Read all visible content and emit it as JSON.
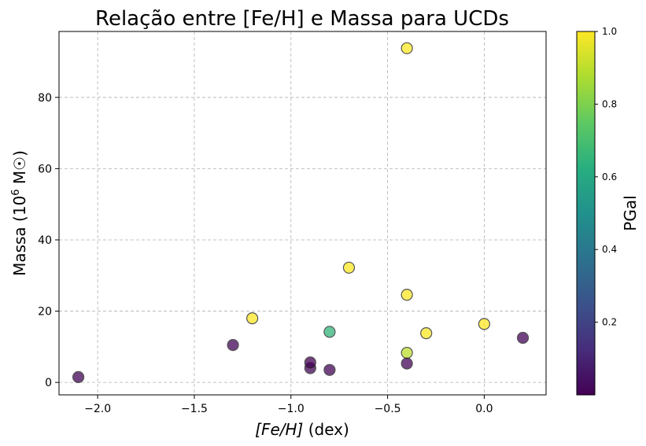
{
  "chart_data": {
    "type": "scatter",
    "title": "Relação entre [Fe/H] e Massa para UCDs",
    "xlabel_main": "[Fe/H]",
    "xlabel_suffix": " (dex)",
    "ylabel_main": "Massa (10",
    "ylabel_sup": "6",
    "ylabel_suffix": " M☉)",
    "xlim": [
      -2.2,
      0.32
    ],
    "ylim": [
      -3.5,
      98.5
    ],
    "xticks": [
      -2.0,
      -1.5,
      -1.0,
      -0.5,
      0.0
    ],
    "xtick_labels": [
      "−2.0",
      "−1.5",
      "−1.0",
      "−0.5",
      "0.0"
    ],
    "yticks": [
      0,
      20,
      40,
      60,
      80
    ],
    "ytick_labels": [
      "0",
      "20",
      "40",
      "60",
      "80"
    ],
    "grid": true,
    "colorbar": {
      "label": "PGal",
      "range": [
        0.0,
        1.0
      ],
      "ticks": [
        0.2,
        0.4,
        0.6,
        0.8,
        1.0
      ],
      "tick_labels": [
        "0.2",
        "0.4",
        "0.6",
        "0.8",
        "1.0"
      ],
      "colormap": "viridis"
    },
    "points": [
      {
        "x": -2.1,
        "y": 1.5,
        "c": 0.01
      },
      {
        "x": -1.3,
        "y": 10.5,
        "c": 0.01
      },
      {
        "x": -1.2,
        "y": 18.0,
        "c": 1.0
      },
      {
        "x": -0.9,
        "y": 4.0,
        "c": 0.01
      },
      {
        "x": -0.9,
        "y": 5.6,
        "c": 0.0
      },
      {
        "x": -0.8,
        "y": 3.5,
        "c": 0.01
      },
      {
        "x": -0.8,
        "y": 14.2,
        "c": 0.65
      },
      {
        "x": -0.7,
        "y": 32.2,
        "c": 1.0
      },
      {
        "x": -0.4,
        "y": 93.8,
        "c": 1.0
      },
      {
        "x": -0.4,
        "y": 24.6,
        "c": 1.0
      },
      {
        "x": -0.4,
        "y": 8.3,
        "c": 0.9
      },
      {
        "x": -0.4,
        "y": 5.3,
        "c": 0.01
      },
      {
        "x": -0.3,
        "y": 13.8,
        "c": 1.0
      },
      {
        "x": 0.0,
        "y": 16.4,
        "c": 1.0
      },
      {
        "x": 0.2,
        "y": 12.5,
        "c": 0.01
      }
    ]
  }
}
